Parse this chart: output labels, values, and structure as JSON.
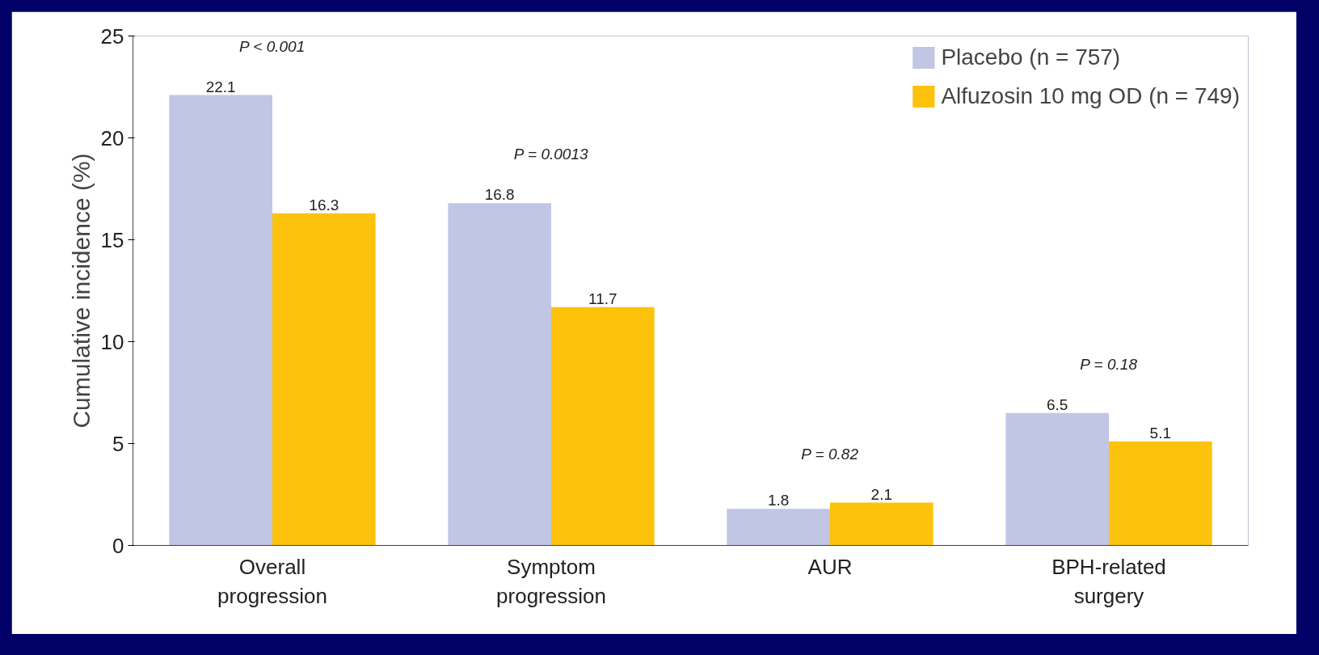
{
  "chart_data": {
    "type": "bar",
    "ylabel": "Cumulative incidence (%)",
    "categories": [
      "Overall\nprogression",
      "Symptom\nprogression",
      "AUR",
      "BPH-related\nsurgery"
    ],
    "series": [
      {
        "name": "Placebo (n = 757)",
        "color": "#c0c6e4",
        "values": [
          22.1,
          16.8,
          1.8,
          6.5
        ]
      },
      {
        "name": "Alfuzosin 10 mg OD (n = 749)",
        "color": "#fdc20c",
        "values": [
          16.3,
          11.7,
          2.1,
          5.1
        ]
      }
    ],
    "ylim": [
      0,
      25
    ],
    "yticks": [
      0,
      5,
      10,
      15,
      20,
      25
    ],
    "data_labels": true,
    "legend": "top right",
    "grid": false,
    "annotations": [
      "P < 0.001",
      "P = 0.0013",
      "P = 0.82",
      "P = 0.18"
    ]
  }
}
